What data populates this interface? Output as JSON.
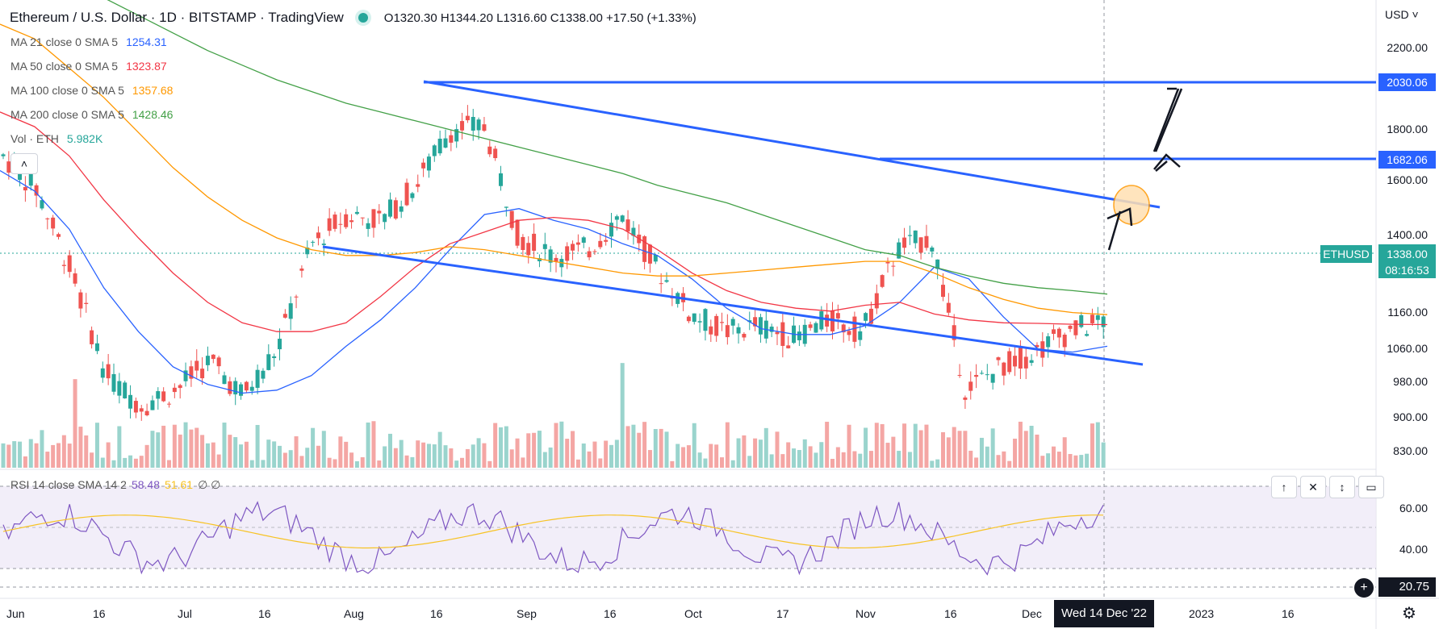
{
  "header": {
    "title": "Ethereum / U.S. Dollar · 1D · BITSTAMP · TradingView",
    "ohlc": "O1320.30  H1344.20  L1316.60  C1338.00  +17.50 (+1.33%)"
  },
  "indicators": [
    {
      "label": "MA 21 close 0 SMA 5",
      "value": "1254.31",
      "color": "#2962ff"
    },
    {
      "label": "MA 50 close 0 SMA 5",
      "value": "1323.87",
      "color": "#f23645"
    },
    {
      "label": "MA 100 close 0 SMA 5",
      "value": "1357.68",
      "color": "#ff9800"
    },
    {
      "label": "MA 200 close 0 SMA 5",
      "value": "1428.46",
      "color": "#43a047"
    },
    {
      "label": "Vol · ETH",
      "value": "5.982K",
      "color": "#26a69a"
    }
  ],
  "rsi": {
    "label": "RSI 14 close SMA 14 2",
    "value": "58.48",
    "sma_value": "51.61",
    "extra": "∅  ∅",
    "current": "20.75"
  },
  "currency": "USD",
  "symbol_tag": "ETHUSD",
  "last_price": "1338.00",
  "countdown": "08:16:53",
  "level_tags": [
    "2030.06",
    "1682.06"
  ],
  "price_axis": [
    "2200.00",
    "1800.00",
    "1600.00",
    "1400.00",
    "1160.00",
    "1060.00",
    "980.00",
    "900.00",
    "830.00"
  ],
  "rsi_axis": [
    "60.00",
    "40.00"
  ],
  "time_axis": [
    "Jun",
    "16",
    "Jul",
    "16",
    "Aug",
    "16",
    "Sep",
    "16",
    "Oct",
    "17",
    "Nov",
    "16",
    "Dec",
    "2023",
    "16"
  ],
  "crosshair_date": "Wed 14 Dec '22",
  "colors": {
    "up": "#26a69a",
    "down": "#ef5350",
    "trend": "#2962ff",
    "rsi": "#7e57c2",
    "rsi_sma": "#f7c325"
  },
  "chart_data": {
    "type": "candlestick",
    "price_range": [
      780,
      2350
    ],
    "series": [
      {
        "name": "MA 21",
        "values": [
          1850,
          1780,
          1650,
          1450,
          1300,
          1180,
          1120,
          1090,
          1100,
          1150,
          1250,
          1340,
          1450,
          1580,
          1700,
          1720,
          1680,
          1650,
          1600,
          1560,
          1480,
          1380,
          1310,
          1290,
          1290,
          1320,
          1400,
          1520,
          1480,
          1350,
          1240,
          1230,
          1250
        ]
      },
      {
        "name": "MA 50",
        "values": [
          2050,
          2000,
          1900,
          1750,
          1620,
          1500,
          1400,
          1330,
          1300,
          1300,
          1330,
          1420,
          1520,
          1600,
          1640,
          1680,
          1690,
          1680,
          1650,
          1580,
          1500,
          1440,
          1400,
          1380,
          1370,
          1390,
          1400,
          1360,
          1340,
          1330,
          1328,
          1325,
          1324
        ]
      },
      {
        "name": "MA 100",
        "values": [
          2350,
          2300,
          2200,
          2100,
          1980,
          1860,
          1760,
          1680,
          1620,
          1580,
          1560,
          1560,
          1570,
          1590,
          1580,
          1560,
          1540,
          1520,
          1500,
          1490,
          1490,
          1500,
          1510,
          1520,
          1530,
          1540,
          1540,
          1500,
          1450,
          1410,
          1380,
          1365,
          1358
        ]
      },
      {
        "name": "MA 200",
        "values": [
          2600,
          2560,
          2500,
          2440,
          2380,
          2320,
          2260,
          2210,
          2160,
          2120,
          2080,
          2050,
          2020,
          1990,
          1960,
          1930,
          1900,
          1870,
          1840,
          1800,
          1770,
          1740,
          1700,
          1660,
          1620,
          1580,
          1560,
          1520,
          1490,
          1465,
          1450,
          1440,
          1428
        ]
      }
    ]
  }
}
